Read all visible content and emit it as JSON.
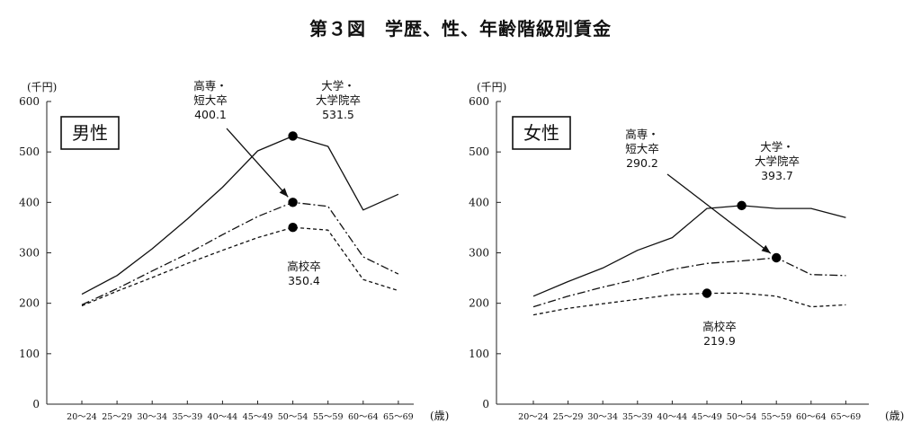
{
  "title": "第３図　学歴、性、年齢階級別賃金",
  "chart_data": [
    {
      "type": "line",
      "panel_label": "男性",
      "y_unit": "(千円)",
      "x_unit": "(歳)",
      "ylim": [
        0,
        600
      ],
      "yticks": [
        0,
        100,
        200,
        300,
        400,
        500,
        600
      ],
      "categories": [
        "20〜24",
        "25〜29",
        "30〜34",
        "35〜39",
        "40〜44",
        "45〜49",
        "50〜54",
        "55〜59",
        "60〜64",
        "65〜69"
      ],
      "series": [
        {
          "name": "大学・大学院卒",
          "style": "solid",
          "values": [
            218,
            255,
            308,
            367,
            430,
            502,
            531.5,
            511,
            385,
            416
          ]
        },
        {
          "name": "高専・短大卒",
          "style": "dashdot",
          "values": [
            197,
            229,
            264,
            298,
            336,
            372,
            400.1,
            392,
            292,
            258
          ]
        },
        {
          "name": "高校卒",
          "style": "dashed",
          "values": [
            195,
            224,
            251,
            279,
            305,
            330,
            350.4,
            345,
            247,
            225
          ]
        }
      ],
      "annotations": [
        {
          "series": "大学・大学院卒",
          "lines": [
            "大学・",
            "大学院卒",
            "531.5"
          ],
          "category": "50〜54",
          "value": 531.5
        },
        {
          "series": "高専・短大卒",
          "lines": [
            "高専・",
            "短大卒",
            "400.1"
          ],
          "category": "50〜54",
          "value": 400.1
        },
        {
          "series": "高校卒",
          "lines": [
            "高校卒",
            "350.4"
          ],
          "category": "50〜54",
          "value": 350.4
        }
      ]
    },
    {
      "type": "line",
      "panel_label": "女性",
      "y_unit": "(千円)",
      "x_unit": "(歳)",
      "ylim": [
        0,
        600
      ],
      "yticks": [
        0,
        100,
        200,
        300,
        400,
        500,
        600
      ],
      "categories": [
        "20〜24",
        "25〜29",
        "30〜34",
        "35〜39",
        "40〜44",
        "45〜49",
        "50〜54",
        "55〜59",
        "60〜64",
        "65〜69"
      ],
      "series": [
        {
          "name": "大学・大学院卒",
          "style": "solid",
          "values": [
            214,
            243,
            270,
            305,
            330,
            388,
            393.7,
            388,
            388,
            370
          ]
        },
        {
          "name": "高専・短大卒",
          "style": "dashdot",
          "values": [
            193,
            214,
            232,
            248,
            267,
            279,
            284,
            290.2,
            257,
            255
          ]
        },
        {
          "name": "高校卒",
          "style": "dashed",
          "values": [
            177,
            190,
            199,
            208,
            217,
            219.9,
            220,
            214,
            193,
            197
          ]
        }
      ],
      "annotations": [
        {
          "series": "大学・大学院卒",
          "lines": [
            "大学・",
            "大学院卒",
            "393.7"
          ],
          "category": "50〜54",
          "value": 393.7
        },
        {
          "series": "高専・短大卒",
          "lines": [
            "高専・",
            "短大卒",
            "290.2"
          ],
          "category": "55〜59",
          "value": 290.2
        },
        {
          "series": "高校卒",
          "lines": [
            "高校卒",
            "219.9"
          ],
          "category": "45〜49",
          "value": 219.9
        }
      ]
    }
  ]
}
